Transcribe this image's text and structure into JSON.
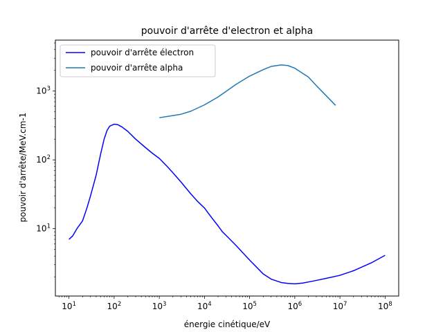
{
  "chart_data": {
    "type": "line",
    "title": "pouvoir d'arrête d'electron et alpha",
    "xlabel": "énergie cinétique/eV",
    "ylabel": "pouvoir d'arrête/MeV.cm-1",
    "xscale": "log",
    "yscale": "log",
    "xlim": [
      5,
      200000000.0
    ],
    "ylim": [
      1.05,
      5500
    ],
    "grid": false,
    "legend_position": "top-left",
    "x_ticks": [
      {
        "value": 10,
        "base": "10",
        "exp": "1"
      },
      {
        "value": 100,
        "base": "10",
        "exp": "2"
      },
      {
        "value": 1000,
        "base": "10",
        "exp": "3"
      },
      {
        "value": 10000,
        "base": "10",
        "exp": "4"
      },
      {
        "value": 100000,
        "base": "10",
        "exp": "5"
      },
      {
        "value": 1000000,
        "base": "10",
        "exp": "6"
      },
      {
        "value": 10000000,
        "base": "10",
        "exp": "7"
      },
      {
        "value": 100000000,
        "base": "10",
        "exp": "8"
      }
    ],
    "y_ticks": [
      {
        "value": 10,
        "base": "10",
        "exp": "1"
      },
      {
        "value": 100,
        "base": "10",
        "exp": "2"
      },
      {
        "value": 1000,
        "base": "10",
        "exp": "3"
      }
    ],
    "series": [
      {
        "name": "pouvoir d'arrête électron",
        "color": "#0000ff",
        "x": [
          10,
          12,
          15,
          20,
          25,
          30,
          40,
          50,
          60,
          70,
          80,
          100,
          120,
          150,
          200,
          300,
          500,
          700,
          1000,
          1500,
          2000,
          3000,
          5000,
          7000,
          10000,
          12000,
          15000,
          20000,
          25000,
          30000,
          50000,
          100000,
          200000,
          300000,
          500000,
          700000,
          1000000,
          1500000,
          2000000,
          3000000,
          5000000,
          10000000,
          20000000,
          50000000,
          100000000
        ],
        "y": [
          7,
          7.8,
          10,
          13,
          20,
          30,
          60,
          120,
          200,
          270,
          310,
          330,
          325,
          300,
          260,
          200,
          150,
          125,
          105,
          80,
          65,
          48,
          32,
          25,
          20,
          17,
          14,
          11,
          9,
          8,
          5.7,
          3.5,
          2.2,
          1.85,
          1.65,
          1.6,
          1.58,
          1.62,
          1.68,
          1.77,
          1.9,
          2.1,
          2.45,
          3.2,
          4.1
        ]
      },
      {
        "name": "pouvoir d'arrête alpha",
        "color": "#1f77b4",
        "x": [
          1000,
          2000,
          3000,
          5000,
          10000,
          20000,
          50000,
          100000,
          200000,
          300000,
          500000,
          700000,
          1000000,
          2000000,
          3000000,
          5000000,
          8000000
        ],
        "y": [
          410,
          440,
          460,
          510,
          630,
          820,
          1250,
          1650,
          2050,
          2280,
          2400,
          2350,
          2150,
          1600,
          1200,
          850,
          620
        ]
      }
    ]
  }
}
